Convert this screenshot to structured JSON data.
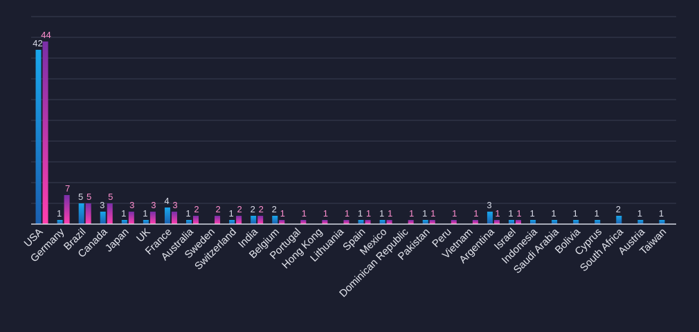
{
  "chart_data": {
    "type": "bar",
    "categories": [
      "USA",
      "Germany",
      "Brazil",
      "Canada",
      "Japan",
      "UK",
      "France",
      "Australia",
      "Sweden",
      "Switzerland",
      "India",
      "Belgium",
      "Portugal",
      "Hong Kong",
      "Lithuania",
      "Spain",
      "Mexico",
      "Dominican Republic",
      "Pakistan",
      "Peru",
      "Vietnam",
      "Argentina",
      "Israel",
      "Indonesia",
      "Saudi Arabia",
      "Bolivia",
      "Cyprus",
      "South Africa",
      "Austria",
      "Taiwan"
    ],
    "series": [
      {
        "values": [
          42,
          1,
          5,
          3,
          1,
          1,
          4,
          1,
          0,
          1,
          2,
          2,
          0,
          0,
          0,
          1,
          1,
          0,
          1,
          0,
          0,
          3,
          1,
          1,
          1,
          1,
          1,
          2,
          1,
          1
        ]
      },
      {
        "values": [
          44,
          7,
          5,
          5,
          3,
          3,
          3,
          2,
          2,
          2,
          2,
          1,
          1,
          1,
          1,
          1,
          1,
          1,
          1,
          1,
          1,
          1,
          1,
          0,
          0,
          0,
          0,
          0,
          0,
          0
        ]
      }
    ],
    "ylim": [
      0,
      50
    ],
    "grid": true,
    "legend": "none",
    "colors": {
      "series0_top": "#1aa7ec",
      "series0_bottom": "#1a5fb0",
      "series1_top": "#7a2fa8",
      "series1_bottom": "#ff3fae",
      "label0": "#d9dce8",
      "label1": "#ff8fcf",
      "grid": "#3a3e52",
      "axis": "#d8dbe6",
      "tick_text": "#e4e6ee",
      "background": "#1b1e2e"
    }
  }
}
